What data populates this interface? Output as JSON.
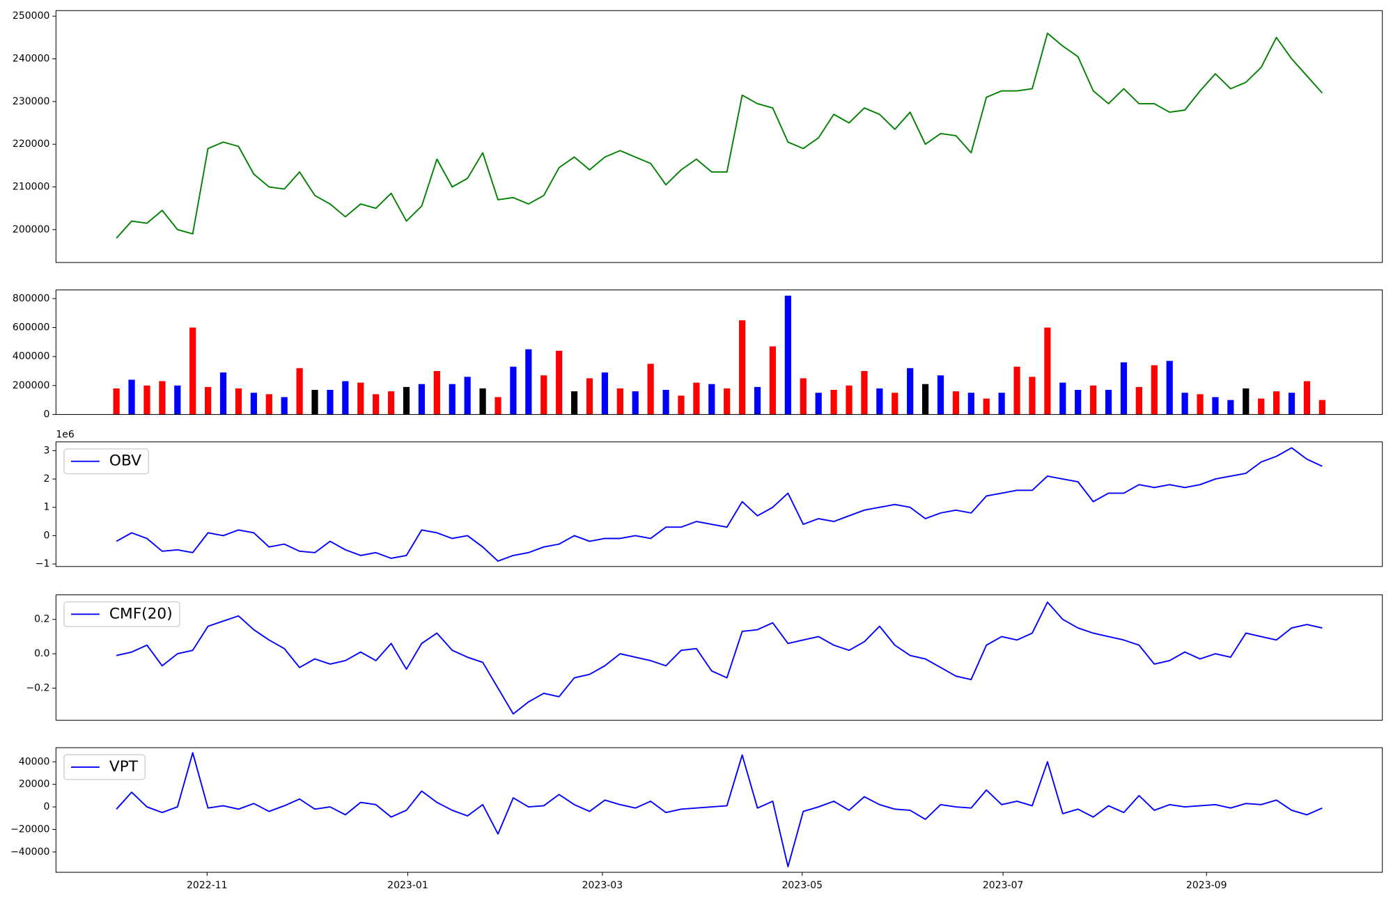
{
  "chart_data": [
    {
      "type": "line",
      "color": "green",
      "values": [
        198000,
        202000,
        201500,
        204500,
        200000,
        199000,
        219000,
        220500,
        219500,
        213000,
        210000,
        209500,
        213500,
        208000,
        206000,
        203000,
        206000,
        205000,
        208500,
        202000,
        205500,
        216500,
        210000,
        212000,
        218000,
        207000,
        207500,
        206000,
        208000,
        214500,
        217000,
        214000,
        217000,
        218500,
        217000,
        215500,
        210500,
        214000,
        216500,
        213500,
        213500,
        231500,
        229500,
        228500,
        220500,
        219000,
        221500,
        227000,
        225000,
        228500,
        227000,
        223500,
        227500,
        220000,
        222500,
        222000,
        218000,
        231000,
        232500,
        232500,
        233000,
        246000,
        243000,
        240500,
        232500,
        229500,
        233000,
        229500,
        229500,
        227500,
        228000,
        232500,
        236500,
        233000,
        234500,
        238000,
        245000,
        240000,
        236000,
        232000
      ],
      "xlim": [
        -3.96,
        82.94
      ],
      "ylim": [
        192300,
        251300
      ],
      "yticks": [
        200000,
        210000,
        220000,
        230000,
        240000,
        250000
      ]
    },
    {
      "type": "bar",
      "values": [
        180000,
        240000,
        200000,
        230000,
        200000,
        600000,
        190000,
        290000,
        180000,
        150000,
        140000,
        120000,
        320000,
        170000,
        170000,
        230000,
        220000,
        140000,
        160000,
        190000,
        210000,
        300000,
        210000,
        260000,
        180000,
        120000,
        330000,
        450000,
        270000,
        440000,
        160000,
        250000,
        290000,
        180000,
        160000,
        350000,
        170000,
        130000,
        220000,
        210000,
        180000,
        650000,
        190000,
        470000,
        820000,
        250000,
        150000,
        170000,
        200000,
        300000,
        180000,
        150000,
        320000,
        210000,
        270000,
        160000,
        150000,
        110000,
        150000,
        330000,
        260000,
        600000,
        220000,
        170000,
        200000,
        170000,
        360000,
        190000,
        340000,
        370000,
        150000,
        140000,
        120000,
        100000,
        180000,
        110000,
        160000,
        150000,
        230000,
        100000
      ],
      "colors": [
        "red",
        "blue",
        "red",
        "red",
        "blue",
        "red",
        "red",
        "blue",
        "red",
        "blue",
        "red",
        "blue",
        "red",
        "black",
        "blue",
        "blue",
        "red",
        "red",
        "red",
        "black",
        "blue",
        "red",
        "blue",
        "blue",
        "black",
        "red",
        "blue",
        "blue",
        "red",
        "red",
        "black",
        "red",
        "blue",
        "red",
        "blue",
        "red",
        "blue",
        "red",
        "red",
        "blue",
        "red",
        "red",
        "blue",
        "red",
        "blue",
        "red",
        "blue",
        "red",
        "red",
        "red",
        "blue",
        "red",
        "blue",
        "black",
        "blue",
        "red",
        "blue",
        "red",
        "blue",
        "red",
        "red",
        "red",
        "blue",
        "blue",
        "red",
        "blue",
        "blue",
        "red",
        "red",
        "blue",
        "blue",
        "red",
        "blue",
        "blue",
        "black",
        "red",
        "red",
        "blue",
        "red",
        "red"
      ],
      "xlim": [
        -3.96,
        82.94
      ],
      "ylim": [
        0,
        860000
      ],
      "yticks": [
        0,
        200000,
        400000,
        600000,
        800000
      ]
    },
    {
      "type": "line",
      "offset_label": "1e6",
      "legend": "upper left",
      "series": [
        {
          "name": "OBV",
          "color": "blue",
          "values": [
            -0.2,
            0.1,
            -0.1,
            -0.55,
            -0.5,
            -0.6,
            0.1,
            0.0,
            0.2,
            0.1,
            -0.4,
            -0.3,
            -0.55,
            -0.6,
            -0.2,
            -0.5,
            -0.7,
            -0.6,
            -0.8,
            -0.7,
            0.2,
            0.1,
            -0.1,
            0.0,
            -0.4,
            -0.9,
            -0.7,
            -0.6,
            -0.4,
            -0.3,
            0.0,
            -0.2,
            -0.1,
            -0.1,
            0.0,
            -0.1,
            0.3,
            0.3,
            0.5,
            0.4,
            0.3,
            1.2,
            0.7,
            1.0,
            1.5,
            0.4,
            0.6,
            0.5,
            0.7,
            0.9,
            1.0,
            1.1,
            1.0,
            0.6,
            0.8,
            0.9,
            0.8,
            1.4,
            1.5,
            1.6,
            1.6,
            2.1,
            2.0,
            1.9,
            1.2,
            1.5,
            1.5,
            1.8,
            1.7,
            1.8,
            1.7,
            1.8,
            2.0,
            2.1,
            2.2,
            2.6,
            2.8,
            3.1,
            2.7,
            2.45
          ]
        }
      ],
      "xlim": [
        -3.96,
        82.94
      ],
      "ylim": [
        -1.09,
        3.31
      ],
      "yticks": [
        {
          "value": -1,
          "label": "−1"
        },
        0,
        1,
        2,
        3
      ]
    },
    {
      "type": "line",
      "legend": "upper left",
      "series": [
        {
          "name": "CMF(20)",
          "color": "blue",
          "values": [
            -0.01,
            0.01,
            0.05,
            -0.07,
            0.0,
            0.02,
            0.16,
            0.19,
            0.22,
            0.14,
            0.08,
            0.03,
            -0.08,
            -0.03,
            -0.06,
            -0.04,
            0.01,
            -0.04,
            0.06,
            -0.09,
            0.06,
            0.12,
            0.02,
            -0.02,
            -0.05,
            -0.2,
            -0.35,
            -0.28,
            -0.23,
            -0.25,
            -0.14,
            -0.12,
            -0.07,
            0.0,
            -0.02,
            -0.04,
            -0.07,
            0.02,
            0.03,
            -0.1,
            -0.14,
            0.13,
            0.14,
            0.18,
            0.06,
            0.08,
            0.1,
            0.05,
            0.02,
            0.07,
            0.16,
            0.05,
            -0.01,
            -0.03,
            -0.08,
            -0.13,
            -0.15,
            0.05,
            0.1,
            0.08,
            0.12,
            0.3,
            0.2,
            0.15,
            0.12,
            0.1,
            0.08,
            0.05,
            -0.06,
            -0.04,
            0.01,
            -0.03,
            0.0,
            -0.02,
            0.12,
            0.1,
            0.08,
            0.15,
            0.17,
            0.15
          ]
        }
      ],
      "xlim": [
        -3.96,
        82.94
      ],
      "ylim": [
        -0.387,
        0.343
      ],
      "yticks": [
        {
          "value": -0.2,
          "label": "−0.2"
        },
        {
          "value": 0,
          "label": "0.0"
        },
        0.2
      ]
    },
    {
      "type": "line",
      "legend": "upper left",
      "series": [
        {
          "name": "VPT",
          "color": "blue",
          "values": [
            -2000,
            13000,
            0,
            -5000,
            0,
            48000,
            -1000,
            1000,
            -2000,
            3000,
            -4000,
            1000,
            7000,
            -2000,
            0,
            -7000,
            4000,
            2000,
            -9000,
            -3000,
            14000,
            4000,
            -3000,
            -8000,
            2000,
            -24000,
            8000,
            0,
            1000,
            11000,
            2000,
            -4000,
            6000,
            2000,
            -1000,
            5000,
            -5000,
            -2000,
            -1000,
            0,
            1000,
            46000,
            -1000,
            5000,
            -53000,
            -4000,
            0,
            5000,
            -3000,
            9000,
            2000,
            -2000,
            -3000,
            -11000,
            2000,
            0,
            -1000,
            15000,
            2000,
            5000,
            1000,
            40000,
            -6000,
            -2000,
            -9000,
            1000,
            -5000,
            10000,
            -3000,
            2000,
            0,
            1000,
            2000,
            -1000,
            3000,
            2000,
            6000,
            -3000,
            -7000,
            -1000
          ]
        }
      ],
      "xlim": [
        -3.96,
        82.94
      ],
      "ylim": [
        -58000,
        52500
      ],
      "yticks": [
        {
          "value": -40000,
          "label": "−40000"
        },
        {
          "value": -20000,
          "label": "−20000"
        },
        0,
        20000,
        40000
      ],
      "xticks": [
        {
          "value": 5.94,
          "label": "2022-11"
        },
        {
          "value": 19.09,
          "label": "2023-01"
        },
        {
          "value": 31.84,
          "label": "2023-03"
        },
        {
          "value": 44.93,
          "label": "2023-05"
        },
        {
          "value": 58.09,
          "label": "2023-07"
        },
        {
          "value": 71.42,
          "label": "2023-09"
        }
      ]
    }
  ]
}
